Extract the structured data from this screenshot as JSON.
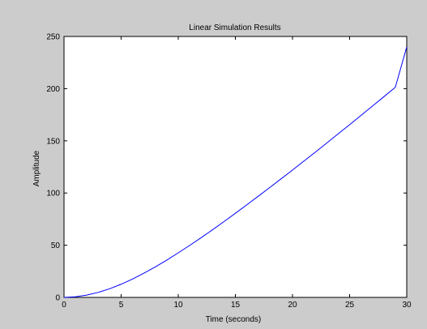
{
  "chart_data": {
    "type": "line",
    "title": "Linear Simulation Results",
    "xlabel": "Time (seconds)",
    "ylabel": "Amplitude",
    "xlim": [
      0,
      30
    ],
    "ylim": [
      0,
      250
    ],
    "xticks": [
      0,
      5,
      10,
      15,
      20,
      25,
      30
    ],
    "yticks": [
      0,
      50,
      100,
      150,
      200,
      250
    ],
    "grid": false,
    "colors": {
      "background": "#cccccc",
      "plot_area": "#ffffff",
      "line": "#0000ff",
      "axes": "#000000"
    },
    "series": [
      {
        "x": [
          0,
          1,
          2,
          3,
          4,
          5,
          6,
          7,
          8,
          9,
          10,
          11,
          12,
          13,
          14,
          15,
          16,
          17,
          18,
          19,
          20,
          21,
          22,
          23,
          24,
          25,
          26,
          27,
          28,
          29,
          30
        ],
        "values": [
          0,
          0.6,
          2.2,
          4.8,
          8.3,
          12.6,
          17.6,
          23.2,
          29.3,
          35.8,
          42.7,
          49.8,
          57.2,
          64.8,
          72.6,
          80.6,
          88.7,
          96.9,
          105.2,
          113.6,
          122.0,
          130.6,
          139.2,
          147.9,
          156.7,
          165.5,
          174.4,
          183.3,
          192.3,
          201.3,
          240.0
        ]
      }
    ]
  }
}
